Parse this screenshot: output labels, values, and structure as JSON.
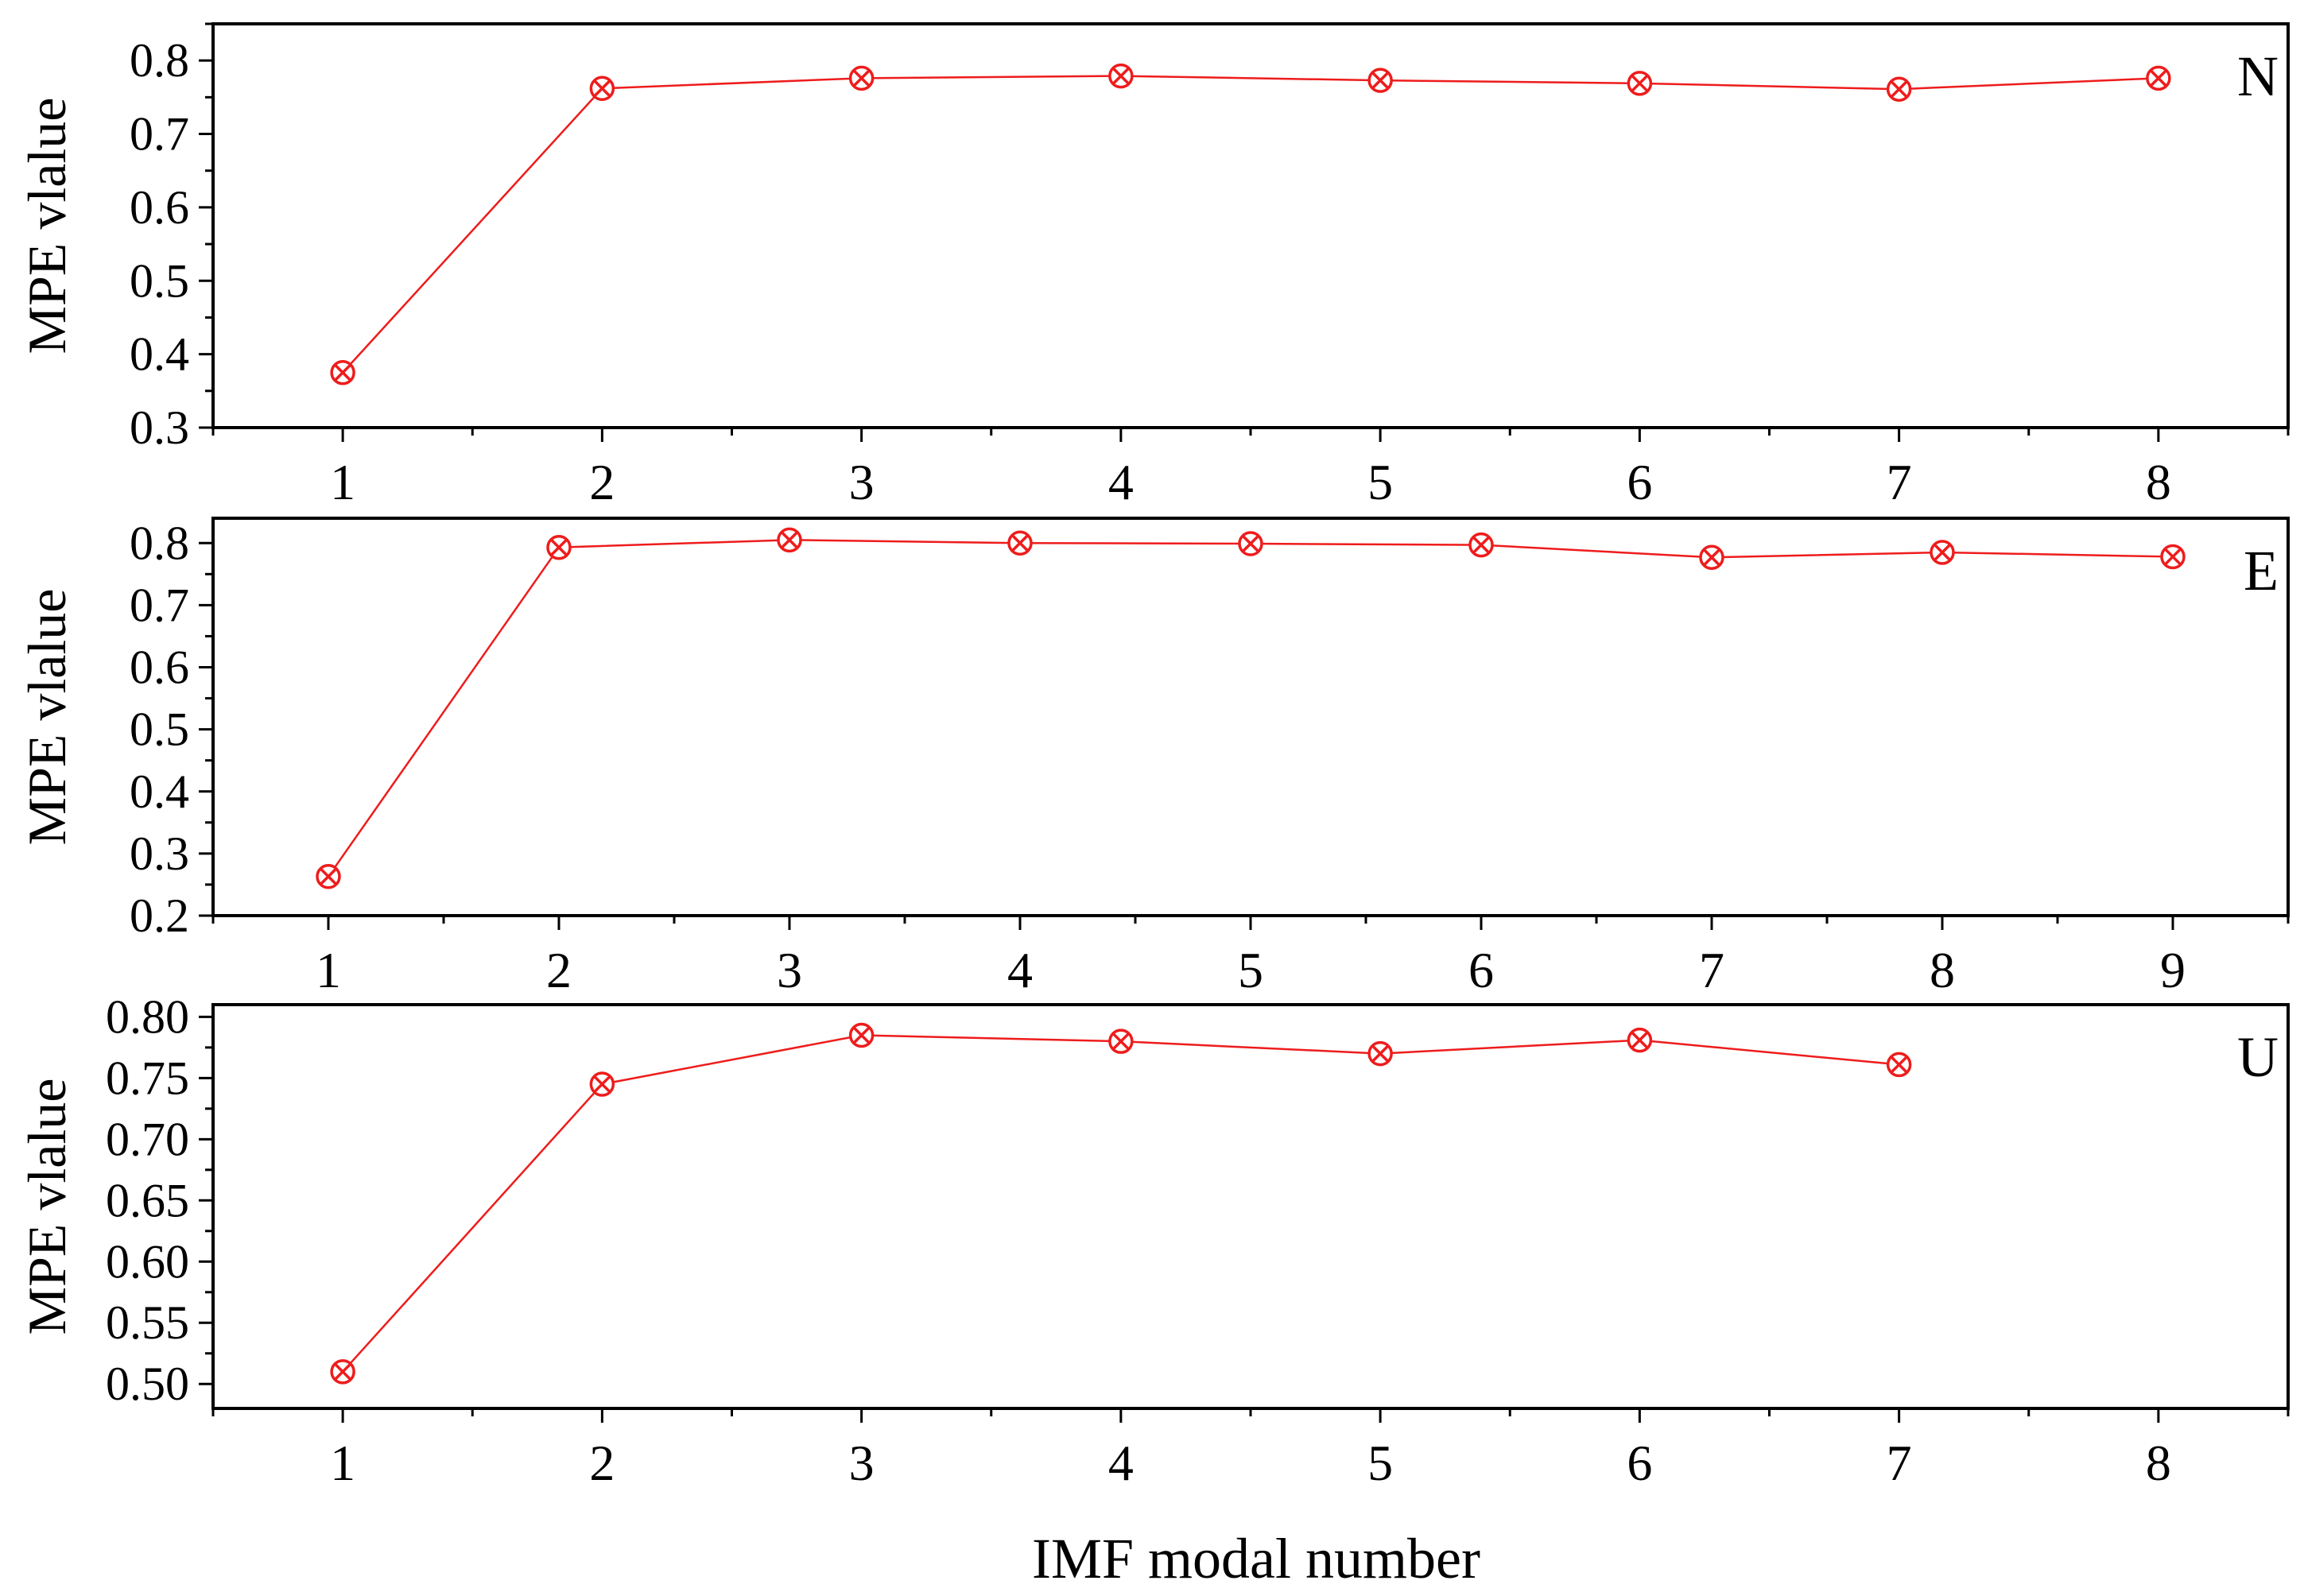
{
  "figure": {
    "xlabel": "IMF modal number",
    "series_color": "#ee1c1c"
  },
  "chart_data": [
    {
      "type": "line",
      "panel_label": "N",
      "ylabel": "MPE vlalue",
      "xlim": [
        0.5,
        8.5
      ],
      "ylim": [
        0.3,
        0.85
      ],
      "xticks": [
        1,
        2,
        3,
        4,
        5,
        6,
        7,
        8
      ],
      "yticks": [
        "0.3",
        "0.4",
        "0.5",
        "0.6",
        "0.7",
        "0.8"
      ],
      "x": [
        1,
        2,
        3,
        4,
        5,
        6,
        7,
        8
      ],
      "y": [
        0.375,
        0.762,
        0.776,
        0.779,
        0.773,
        0.769,
        0.761,
        0.776
      ]
    },
    {
      "type": "line",
      "panel_label": "E",
      "ylabel": "MPE vlalue",
      "xlim": [
        0.5,
        9.5
      ],
      "ylim": [
        0.2,
        0.84
      ],
      "xticks": [
        1,
        2,
        3,
        4,
        5,
        6,
        7,
        8,
        9
      ],
      "yticks": [
        "0.2",
        "0.3",
        "0.4",
        "0.5",
        "0.6",
        "0.7",
        "0.8"
      ],
      "x": [
        1,
        2,
        3,
        4,
        5,
        6,
        7,
        8,
        9
      ],
      "y": [
        0.263,
        0.793,
        0.805,
        0.8,
        0.799,
        0.797,
        0.777,
        0.785,
        0.778
      ]
    },
    {
      "type": "line",
      "panel_label": "U",
      "ylabel": "MPE vlalue",
      "xlim": [
        0.5,
        8.5
      ],
      "ylim": [
        0.48,
        0.81
      ],
      "xticks": [
        1,
        2,
        3,
        4,
        5,
        6,
        7,
        8
      ],
      "yticks": [
        "0.50",
        "0.55",
        "0.60",
        "0.65",
        "0.70",
        "0.75",
        "0.80"
      ],
      "x": [
        1,
        2,
        3,
        4,
        5,
        6,
        7
      ],
      "y": [
        0.51,
        0.745,
        0.785,
        0.78,
        0.77,
        0.781,
        0.761
      ]
    }
  ]
}
